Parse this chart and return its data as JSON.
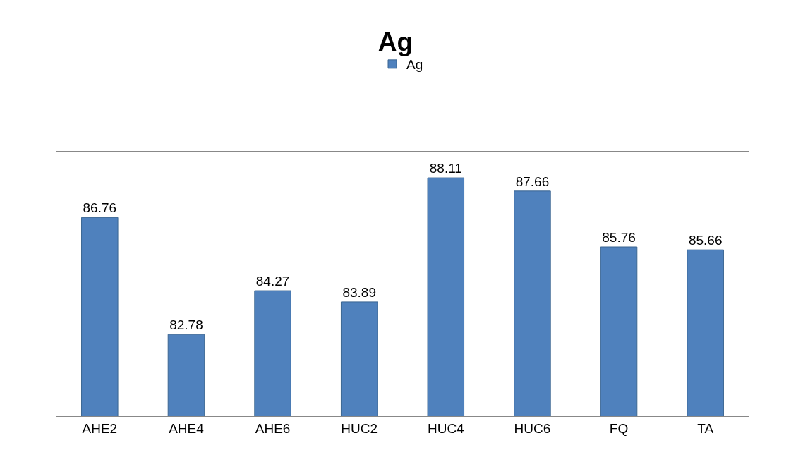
{
  "chart_data": {
    "type": "bar",
    "title": "Ag",
    "categories": [
      "AHE2",
      "AHE4",
      "AHE6",
      "HUC2",
      "HUC4",
      "HUC6",
      "FQ",
      "TA"
    ],
    "series": [
      {
        "name": "Ag",
        "color": "#4f81bd",
        "values": [
          86.76,
          82.78,
          84.27,
          83.89,
          88.11,
          87.66,
          85.76,
          85.66
        ]
      }
    ],
    "ylim": [
      80,
      89
    ],
    "data_labels": true,
    "legend": "top",
    "grid": false,
    "tick_labels": "x"
  }
}
